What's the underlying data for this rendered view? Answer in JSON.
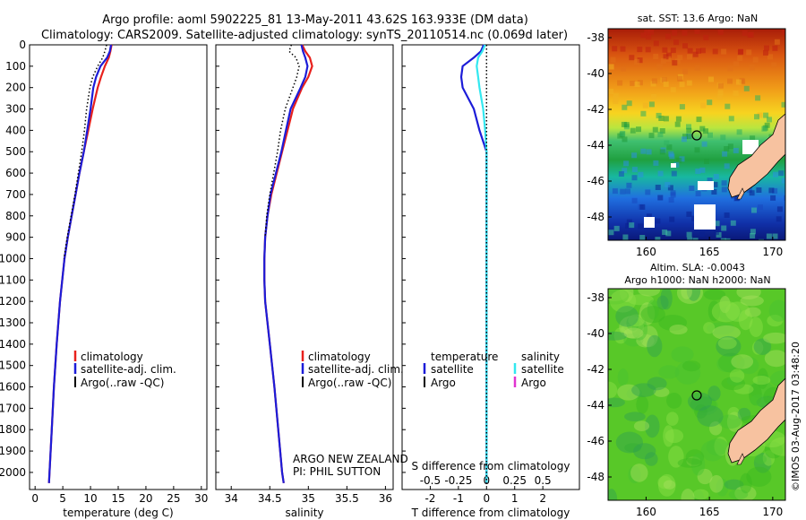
{
  "header": {
    "title_line1": "Argo profile: aoml 5902225_81 13-May-2011 43.62S 163.933E (DM data)",
    "title_line2": "Climatology: CARS2009. Satellite-adjusted climatology: synTS_20110514.nc (0.069d later)"
  },
  "colors": {
    "climatology": "#e8201c",
    "satellite": "#1c1cd8",
    "argo": "#000000",
    "sat_salinity": "#33e8f0",
    "argo_salinity": "#e033d0",
    "land": "#f7c2a0"
  },
  "panels": {
    "temperature": {
      "xlabel": "temperature (deg C)",
      "legend": [
        "climatology",
        "satellite-adj. clim.",
        "Argo(..raw -QC)"
      ]
    },
    "salinity": {
      "xlabel": "salinity",
      "legend": [
        "climatology",
        "satellite-adj. clim.",
        "Argo(..raw -QC)"
      ],
      "note_line1": "ARGO NEW ZEALAND",
      "note_line2": "PI: PHIL SUTTON"
    },
    "difference": {
      "xlabel": "T difference from climatology",
      "top_label": "S difference from climatology",
      "legend_temp_header": "temperature",
      "legend_sal_header": "salinity",
      "legend_temp": [
        "satellite",
        "Argo"
      ],
      "legend_sal": [
        "satellite",
        "Argo"
      ]
    }
  },
  "maps": {
    "sst": {
      "title": "sat. SST: 13.6  Argo: NaN",
      "xticks": [
        "160",
        "165",
        "170"
      ],
      "yticks": [
        "-38",
        "-40",
        "-42",
        "-44",
        "-46",
        "-48"
      ]
    },
    "sla": {
      "title_line1": "Altim. SLA: -0.0043",
      "title_line2": "Argo h1000: NaN h2000: NaN",
      "xticks": [
        "160",
        "165",
        "170"
      ],
      "yticks": [
        "-38",
        "-40",
        "-42",
        "-44",
        "-46",
        "-48"
      ]
    },
    "float_position": {
      "lon": 163.933,
      "lat": -43.62
    }
  },
  "credit": "©IMOS 03-Aug-2017 03:48:20",
  "chart_data": [
    {
      "type": "line",
      "name": "temperature profile",
      "xlabel": "temperature (deg C)",
      "ylabel": "",
      "xlim": [
        -1,
        31
      ],
      "ylim": [
        2080,
        0
      ],
      "xticks": [
        0,
        5,
        10,
        15,
        20,
        25,
        30
      ],
      "yticks": [
        0,
        100,
        200,
        300,
        400,
        500,
        600,
        700,
        800,
        900,
        1000,
        1100,
        1200,
        1300,
        1400,
        1500,
        1600,
        1700,
        1800,
        1900,
        2000
      ],
      "depth": [
        0,
        30,
        60,
        100,
        150,
        200,
        300,
        400,
        500,
        600,
        700,
        800,
        900,
        1000,
        1200,
        1400,
        1600,
        1800,
        2000,
        2050
      ],
      "series": [
        {
          "name": "climatology",
          "color": "#e8201c",
          "values": [
            13.8,
            13.6,
            13.3,
            12.6,
            11.9,
            11.3,
            10.4,
            9.6,
            8.8,
            8.0,
            7.3,
            6.6,
            5.9,
            5.3,
            4.5,
            3.9,
            3.4,
            3.0,
            2.6,
            2.5
          ]
        },
        {
          "name": "satellite-adj. clim.",
          "color": "#1c1cd8",
          "values": [
            13.7,
            13.5,
            13.0,
            11.8,
            11.0,
            10.5,
            10.0,
            9.4,
            8.8,
            8.0,
            7.3,
            6.6,
            5.9,
            5.3,
            4.5,
            3.9,
            3.4,
            3.0,
            2.6,
            2.5
          ]
        },
        {
          "name": "Argo(..raw -QC)",
          "color": "#000000",
          "dotted": true,
          "values": [
            12.9,
            12.6,
            12.2,
            11.3,
            10.4,
            9.9,
            9.3,
            8.9,
            8.4,
            7.8,
            7.2,
            6.5,
            5.8,
            5.2,
            null,
            null,
            null,
            null,
            null,
            null
          ]
        }
      ]
    },
    {
      "type": "line",
      "name": "salinity profile",
      "xlabel": "salinity",
      "ylabel": "",
      "xlim": [
        33.8,
        36.1
      ],
      "ylim": [
        2080,
        0
      ],
      "xticks": [
        34,
        34.5,
        35,
        35.5,
        36
      ],
      "depth": [
        0,
        30,
        60,
        100,
        150,
        200,
        300,
        400,
        500,
        600,
        700,
        800,
        900,
        1000,
        1100,
        1200,
        1300,
        1400,
        1600,
        1800,
        2000,
        2050
      ],
      "series": [
        {
          "name": "climatology",
          "color": "#e8201c",
          "values": [
            34.92,
            34.96,
            35.02,
            35.05,
            35.0,
            34.92,
            34.8,
            34.73,
            34.66,
            34.59,
            34.52,
            34.47,
            34.44,
            34.43,
            34.43,
            34.44,
            34.47,
            34.5,
            34.56,
            34.61,
            34.66,
            34.68
          ]
        },
        {
          "name": "satellite-adj. clim.",
          "color": "#1c1cd8",
          "values": [
            34.91,
            34.93,
            34.96,
            34.99,
            34.96,
            34.9,
            34.77,
            34.71,
            34.65,
            34.58,
            34.51,
            34.47,
            34.44,
            34.43,
            34.43,
            34.44,
            34.47,
            34.5,
            34.56,
            34.61,
            34.66,
            34.68
          ]
        },
        {
          "name": "Argo(..raw -QC)",
          "color": "#000000",
          "dotted": true,
          "values": [
            34.78,
            34.75,
            34.84,
            34.88,
            34.85,
            34.8,
            34.7,
            34.64,
            34.6,
            34.55,
            34.5,
            34.46,
            34.44,
            null,
            null,
            null,
            null,
            null,
            null,
            null,
            null,
            null
          ]
        }
      ]
    },
    {
      "type": "line",
      "name": "difference from climatology",
      "xlabel": "T difference from climatology",
      "x2label": "S difference from climatology",
      "xlim": [
        -3,
        3.3
      ],
      "x2lim": [
        -0.75,
        0.825
      ],
      "ylim": [
        2080,
        0
      ],
      "xticks": [
        -2,
        -1,
        0,
        1,
        2
      ],
      "x2ticks": [
        "-0.5",
        "-0.25",
        "0",
        "0.25",
        "0.5"
      ],
      "depth": [
        0,
        30,
        60,
        100,
        150,
        200,
        300,
        400,
        500,
        600,
        700,
        800,
        900,
        1000,
        1200,
        1400,
        1600,
        1800,
        2000,
        2050
      ],
      "series": [
        {
          "name": "satellite",
          "color": "#1c1cd8",
          "values": [
            -0.1,
            -0.2,
            -0.45,
            -0.85,
            -0.9,
            -0.85,
            -0.45,
            -0.25,
            0,
            0,
            0,
            0,
            0,
            0,
            0,
            0,
            0,
            0,
            0,
            0
          ]
        },
        {
          "name": "satellite salinity",
          "color": "#33e8f0",
          "values": [
            -0.05,
            -0.15,
            -0.3,
            -0.35,
            -0.3,
            -0.25,
            -0.12,
            -0.05,
            0,
            0,
            0,
            0,
            0,
            0,
            0,
            0,
            0,
            0,
            0,
            0
          ]
        },
        {
          "name": "Argo",
          "color": "#000000",
          "dotted": true,
          "values": [
            0,
            0,
            0,
            0,
            0,
            0,
            0,
            0,
            0,
            0,
            0,
            0,
            0,
            0,
            0,
            0,
            0,
            0,
            0,
            0
          ]
        }
      ]
    }
  ]
}
